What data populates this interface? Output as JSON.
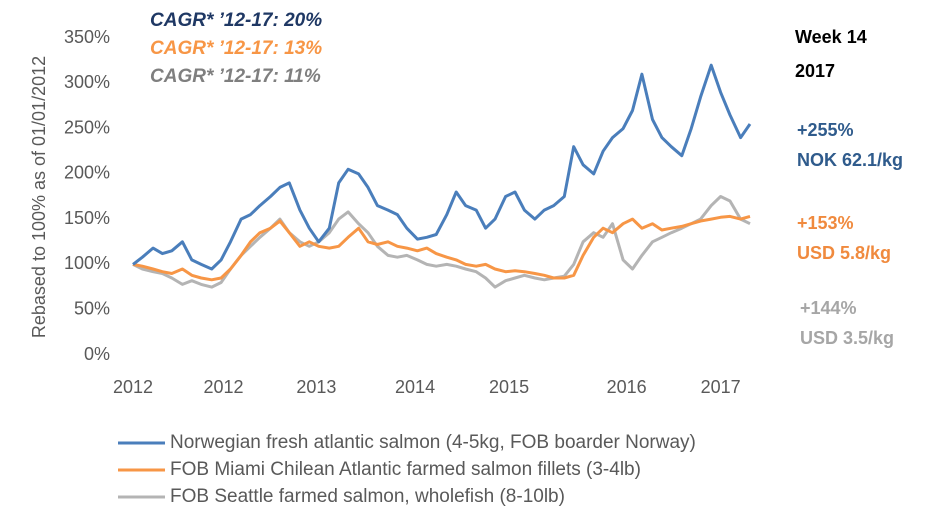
{
  "chart_data": {
    "type": "line",
    "y_label": "Rebased to 100% as of 01/01/2012",
    "x": [
      2012.0,
      2012.08,
      2012.17,
      2012.25,
      2012.33,
      2012.42,
      2012.5,
      2012.58,
      2012.67,
      2012.75,
      2012.83,
      2012.92,
      2013.0,
      2013.08,
      2013.17,
      2013.25,
      2013.33,
      2013.42,
      2013.5,
      2013.58,
      2013.67,
      2013.75,
      2013.83,
      2013.92,
      2014.0,
      2014.08,
      2014.17,
      2014.25,
      2014.33,
      2014.42,
      2014.5,
      2014.58,
      2014.67,
      2014.75,
      2014.83,
      2014.92,
      2015.0,
      2015.08,
      2015.17,
      2015.25,
      2015.33,
      2015.42,
      2015.5,
      2015.58,
      2015.67,
      2015.75,
      2015.83,
      2015.92,
      2016.0,
      2016.08,
      2016.17,
      2016.25,
      2016.33,
      2016.42,
      2016.5,
      2016.58,
      2016.67,
      2016.75,
      2016.83,
      2016.92,
      2017.0,
      2017.08,
      2017.17,
      2017.25
    ],
    "series": [
      {
        "name": "Norwegian fresh atlantic salmon (4-5kg, FOB boarder Norway)",
        "color": "#4a7ebb",
        "values": [
          100,
          108,
          118,
          112,
          115,
          125,
          105,
          100,
          95,
          105,
          125,
          150,
          155,
          165,
          175,
          185,
          190,
          160,
          140,
          125,
          140,
          190,
          205,
          200,
          185,
          165,
          160,
          155,
          140,
          128,
          130,
          133,
          155,
          180,
          165,
          160,
          140,
          150,
          175,
          180,
          160,
          150,
          160,
          165,
          175,
          230,
          210,
          200,
          225,
          240,
          250,
          270,
          310,
          260,
          240,
          230,
          220,
          250,
          285,
          320,
          290,
          265,
          240,
          255
        ]
      },
      {
        "name": "FOB Miami Chilean Atlantic farmed salmon fillets (3-4lb)",
        "color": "#f79646",
        "values": [
          100,
          98,
          95,
          92,
          90,
          95,
          88,
          85,
          83,
          85,
          95,
          110,
          125,
          135,
          140,
          148,
          135,
          120,
          125,
          120,
          118,
          120,
          130,
          140,
          125,
          122,
          125,
          120,
          118,
          115,
          118,
          112,
          108,
          105,
          100,
          98,
          100,
          95,
          92,
          93,
          92,
          90,
          88,
          85,
          85,
          88,
          110,
          130,
          140,
          135,
          145,
          150,
          140,
          145,
          138,
          140,
          142,
          145,
          148,
          150,
          152,
          153,
          150,
          153
        ]
      },
      {
        "name": "FOB Seattle farmed salmon, wholefish (8-10lb)",
        "color": "#b4b4b4",
        "values": [
          100,
          95,
          92,
          90,
          85,
          78,
          82,
          78,
          75,
          80,
          95,
          110,
          120,
          130,
          140,
          150,
          135,
          125,
          120,
          125,
          135,
          150,
          158,
          145,
          135,
          120,
          110,
          108,
          110,
          105,
          100,
          98,
          100,
          98,
          95,
          92,
          85,
          75,
          82,
          85,
          88,
          85,
          83,
          85,
          87,
          100,
          125,
          135,
          130,
          145,
          105,
          95,
          110,
          125,
          130,
          135,
          140,
          145,
          150,
          165,
          175,
          170,
          150,
          145
        ]
      }
    ],
    "xlim": [
      2012,
      2017.25
    ],
    "xticks": [
      {
        "value": 2012.0,
        "label": "2012"
      },
      {
        "value": 2012.77,
        "label": "2012"
      },
      {
        "value": 2013.56,
        "label": "2013"
      },
      {
        "value": 2014.4,
        "label": "2014"
      },
      {
        "value": 2015.2,
        "label": "2015"
      },
      {
        "value": 2016.2,
        "label": "2016"
      },
      {
        "value": 2017.0,
        "label": "2017"
      }
    ],
    "ylim": [
      0,
      350
    ],
    "yticks": [
      {
        "value": 0,
        "label": "0%"
      },
      {
        "value": 50,
        "label": "50%"
      },
      {
        "value": 100,
        "label": "100%"
      },
      {
        "value": 150,
        "label": "150%"
      },
      {
        "value": 200,
        "label": "200%"
      },
      {
        "value": 250,
        "label": "250%"
      },
      {
        "value": 300,
        "label": "300%"
      },
      {
        "value": 350,
        "label": "350%"
      }
    ],
    "grid": false,
    "cagr_annotations": [
      {
        "text": "CAGR* ’12-17: 20%",
        "color": "#1f3864"
      },
      {
        "text": "CAGR* ’12-17: 13%",
        "color": "#f79646"
      },
      {
        "text": "CAGR* ’12-17: 11%",
        "color": "#7f7f7f"
      }
    ],
    "side_annotations": [
      {
        "text": "Week 14",
        "color": "#000000"
      },
      {
        "text": "2017",
        "color": "#000000"
      },
      {
        "text": "+255%",
        "color": "#2f5b8c"
      },
      {
        "text": "NOK 62.1/kg",
        "color": "#2f5b8c"
      },
      {
        "text": "+153%",
        "color": "#f08a3e"
      },
      {
        "text": "USD 5.8/kg",
        "color": "#f08a3e"
      },
      {
        "text": "+144%",
        "color": "#a6a6a6"
      },
      {
        "text": "USD 3.5/kg",
        "color": "#a6a6a6"
      }
    ]
  }
}
